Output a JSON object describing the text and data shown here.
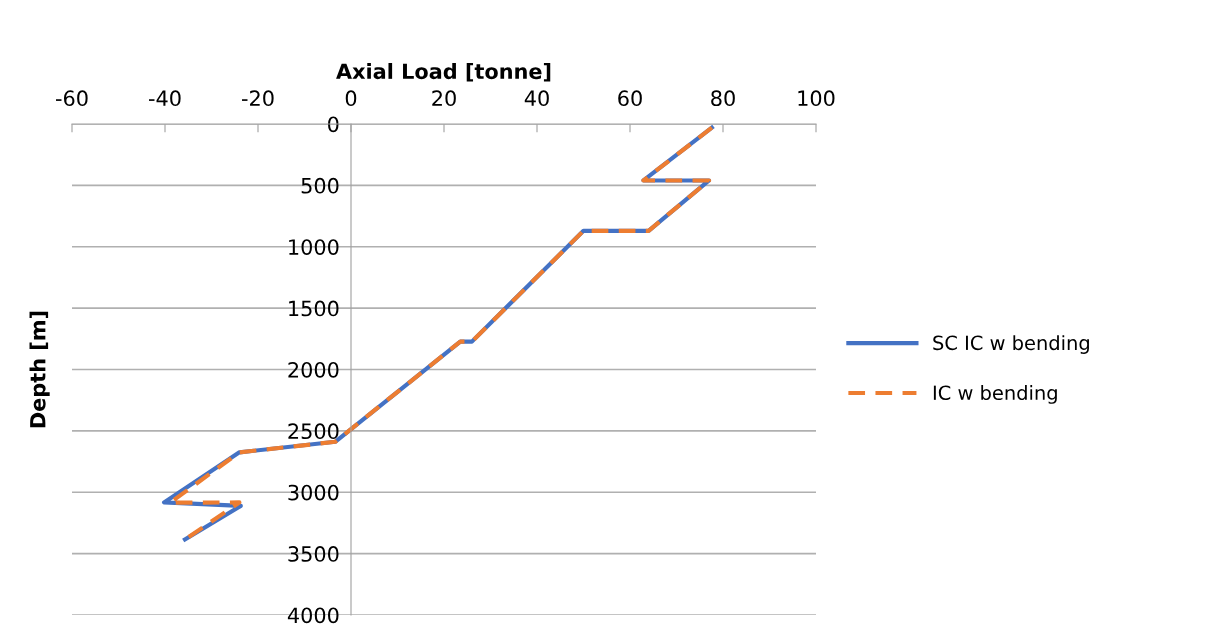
{
  "chart_data": {
    "type": "line",
    "xlabel": "Axial Load [tonne]",
    "ylabel": "Depth [m]",
    "xlim": [
      -60,
      100
    ],
    "xticks": [
      -60,
      -40,
      -20,
      0,
      20,
      40,
      60,
      80,
      100
    ],
    "ylim": [
      4000,
      0
    ],
    "yticks": [
      0,
      500,
      1000,
      1500,
      2000,
      2500,
      3000,
      3500,
      4000
    ],
    "grid": "y",
    "legend": "right",
    "marker": "none",
    "series": [
      {
        "name": "SC IC w bending",
        "color": "#4472c4",
        "line_style": "solid",
        "x": [
          77.6,
          62.9,
          77.0,
          64.0,
          50.0,
          26.0,
          23.5,
          -3.4,
          -24.0,
          -40.2,
          -23.7,
          -35.7
        ],
        "values": [
          30,
          460,
          460,
          870,
          870,
          1773,
          1773,
          2589,
          2675,
          3083,
          3111,
          3385
        ]
      },
      {
        "name": "IC w bending",
        "color": "#ed7d31",
        "line_style": "dashed",
        "x": [
          77.6,
          62.9,
          77.0,
          64.0,
          50.0,
          26.0,
          23.5,
          -3.4,
          -24.0,
          -38.9,
          -24.0,
          -35.7
        ],
        "values": [
          30,
          460,
          460,
          870,
          870,
          1773,
          1773,
          2589,
          2675,
          3085,
          3083,
          3385
        ]
      }
    ]
  }
}
